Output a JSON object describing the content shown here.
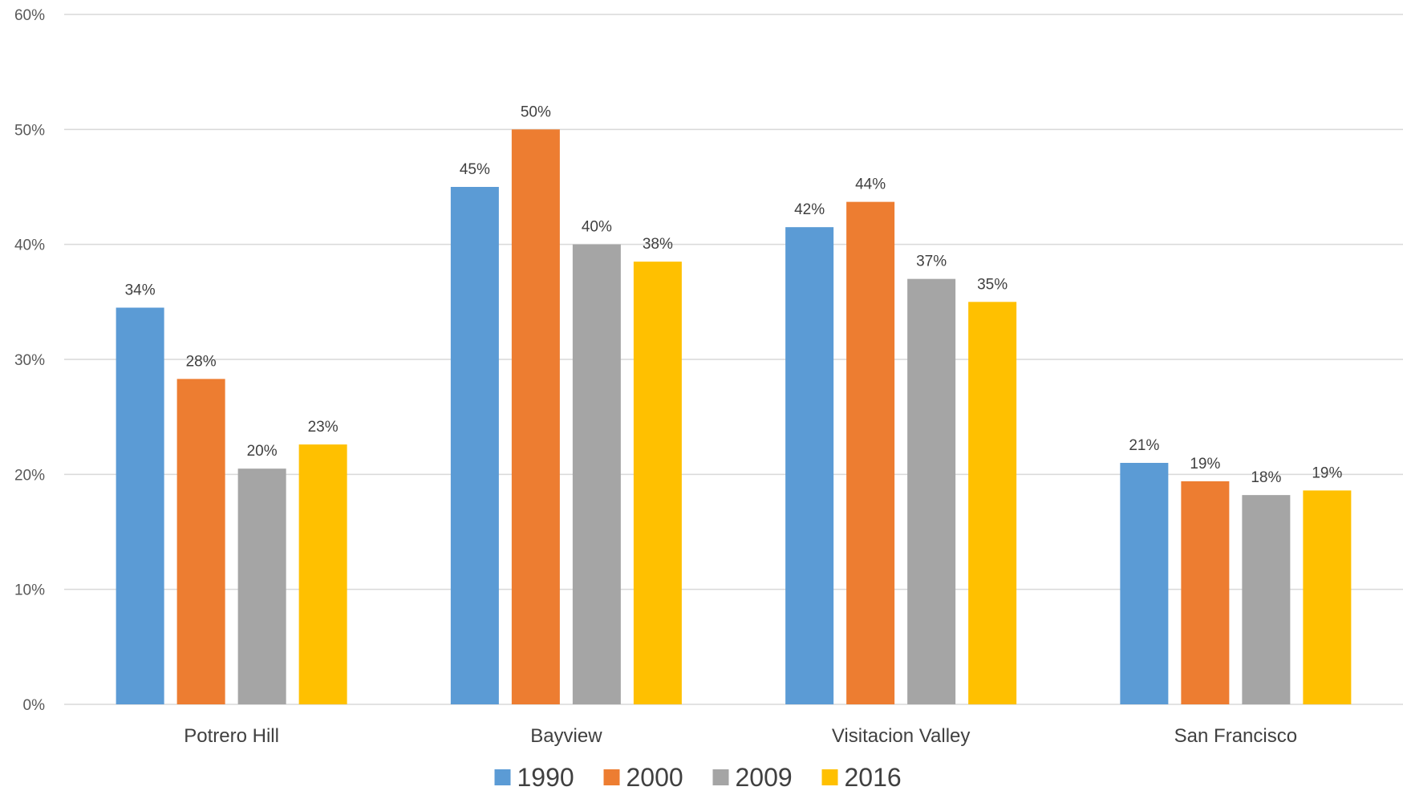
{
  "chart_data": {
    "type": "bar",
    "title": "",
    "xlabel": "",
    "ylabel": "",
    "categories": [
      "Potrero Hill",
      "Bayview",
      "Visitacion Valley",
      "San Francisco"
    ],
    "series": [
      {
        "name": "1990",
        "color": "#5b9bd5",
        "values": [
          0.345,
          0.45,
          0.415,
          0.21
        ],
        "labels": [
          "34%",
          "45%",
          "42%",
          "21%"
        ]
      },
      {
        "name": "2000",
        "color": "#ed7d31",
        "values": [
          0.283,
          0.5,
          0.437,
          0.194
        ],
        "labels": [
          "28%",
          "50%",
          "44%",
          "19%"
        ]
      },
      {
        "name": "2009",
        "color": "#a5a5a5",
        "values": [
          0.205,
          0.4,
          0.37,
          0.182
        ],
        "labels": [
          "20%",
          "40%",
          "37%",
          "18%"
        ]
      },
      {
        "name": "2016",
        "color": "#ffc000",
        "values": [
          0.226,
          0.385,
          0.35,
          0.186
        ],
        "labels": [
          "23%",
          "38%",
          "35%",
          "19%"
        ]
      }
    ],
    "ylim": [
      0,
      0.6
    ],
    "yticks": [
      0,
      0.1,
      0.2,
      0.3,
      0.4,
      0.5,
      0.6
    ],
    "ytick_labels": [
      "0%",
      "10%",
      "20%",
      "30%",
      "40%",
      "50%",
      "60%"
    ],
    "grid": true,
    "legend_position": "bottom-center"
  }
}
